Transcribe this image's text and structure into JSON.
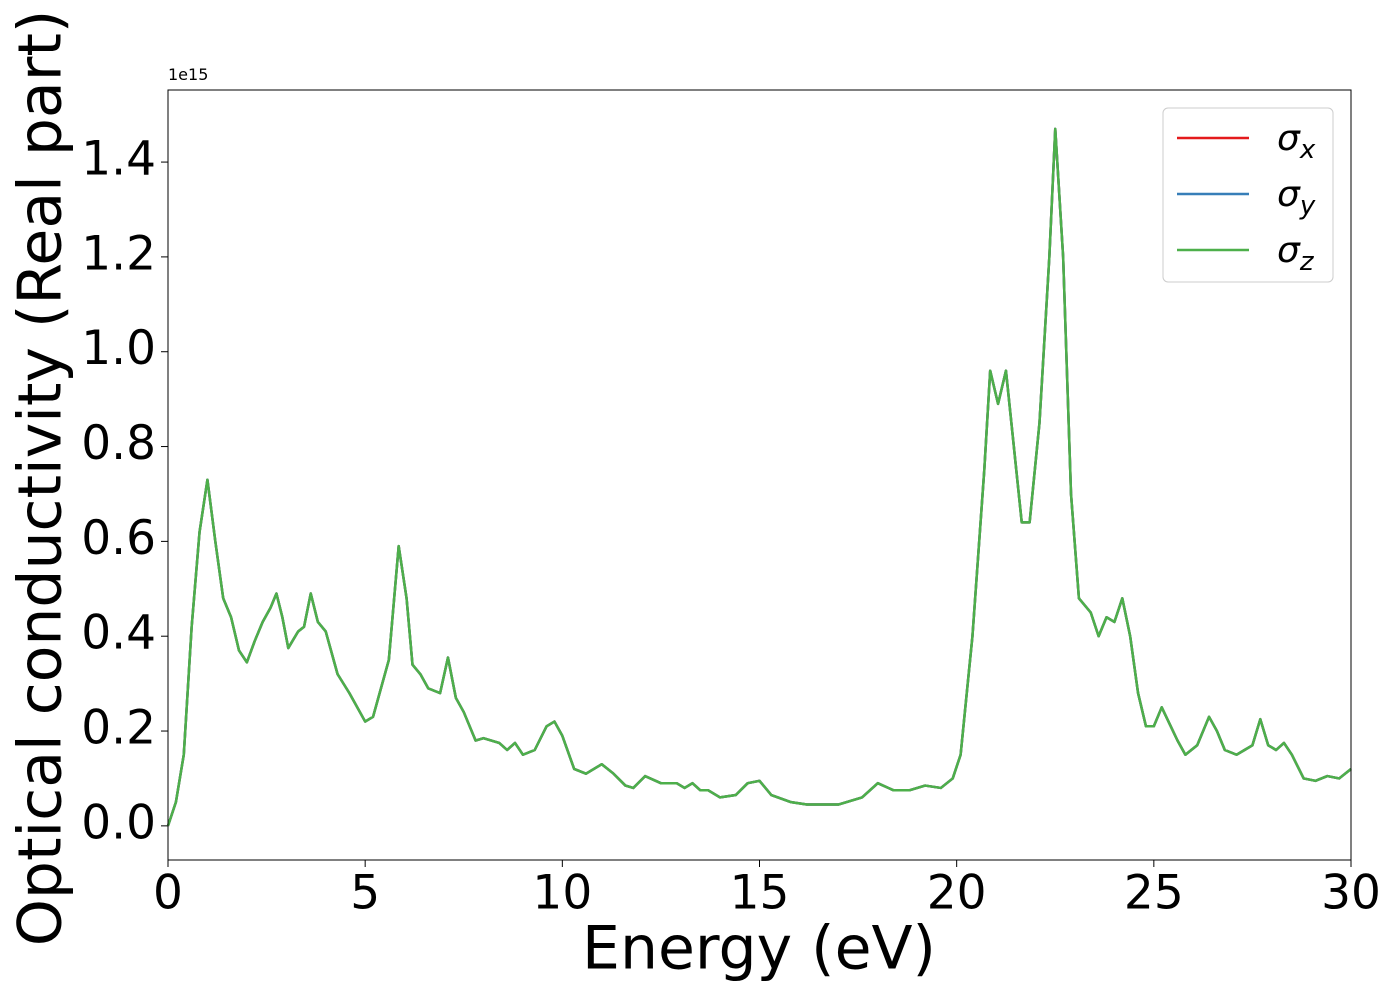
{
  "chart_data": {
    "type": "line",
    "xlabel": "Energy (eV)",
    "ylabel": "Optical conductivity (Real part)",
    "y_offset_label": "1e15",
    "x": [
      0,
      0.2,
      0.4,
      0.6,
      0.8,
      1.0,
      1.2,
      1.4,
      1.6,
      1.8,
      2.0,
      2.2,
      2.4,
      2.6,
      2.75,
      2.9,
      3.05,
      3.3,
      3.45,
      3.62,
      3.8,
      4.0,
      4.3,
      4.6,
      5.0,
      5.2,
      5.6,
      5.85,
      6.05,
      6.2,
      6.4,
      6.6,
      6.9,
      7.1,
      7.3,
      7.5,
      7.8,
      8.0,
      8.4,
      8.6,
      8.8,
      9.0,
      9.3,
      9.6,
      9.8,
      10.0,
      10.3,
      10.6,
      11.0,
      11.3,
      11.6,
      11.8,
      12.1,
      12.5,
      12.9,
      13.1,
      13.3,
      13.5,
      13.7,
      14.0,
      14.4,
      14.7,
      15.0,
      15.3,
      15.8,
      16.2,
      17.0,
      17.6,
      18.0,
      18.4,
      18.8,
      19.2,
      19.6,
      19.9,
      20.1,
      20.4,
      20.7,
      20.85,
      21.05,
      21.25,
      21.45,
      21.65,
      21.85,
      22.1,
      22.35,
      22.5,
      22.7,
      22.9,
      23.1,
      23.4,
      23.6,
      23.8,
      24.0,
      24.2,
      24.4,
      24.6,
      24.8,
      25.0,
      25.2,
      25.4,
      25.6,
      25.8,
      26.1,
      26.4,
      26.6,
      26.8,
      27.1,
      27.3,
      27.5,
      27.7,
      27.9,
      28.1,
      28.3,
      28.5,
      28.8,
      29.1,
      29.4,
      29.7,
      30.0
    ],
    "series": [
      {
        "name": "σx",
        "color": "#e41a1c",
        "values": [
          0.0,
          0.05,
          0.15,
          0.42,
          0.62,
          0.73,
          0.6,
          0.48,
          0.44,
          0.37,
          0.345,
          0.39,
          0.43,
          0.46,
          0.49,
          0.44,
          0.375,
          0.41,
          0.42,
          0.49,
          0.43,
          0.41,
          0.32,
          0.28,
          0.22,
          0.23,
          0.35,
          0.59,
          0.48,
          0.34,
          0.32,
          0.29,
          0.28,
          0.355,
          0.27,
          0.24,
          0.18,
          0.185,
          0.175,
          0.16,
          0.175,
          0.15,
          0.16,
          0.21,
          0.22,
          0.19,
          0.12,
          0.11,
          0.13,
          0.11,
          0.085,
          0.08,
          0.105,
          0.09,
          0.09,
          0.08,
          0.09,
          0.075,
          0.075,
          0.06,
          0.065,
          0.09,
          0.095,
          0.065,
          0.05,
          0.045,
          0.045,
          0.06,
          0.09,
          0.075,
          0.075,
          0.085,
          0.08,
          0.1,
          0.15,
          0.4,
          0.75,
          0.96,
          0.89,
          0.96,
          0.8,
          0.64,
          0.64,
          0.85,
          1.2,
          1.47,
          1.2,
          0.7,
          0.48,
          0.45,
          0.4,
          0.44,
          0.43,
          0.48,
          0.4,
          0.28,
          0.21,
          0.21,
          0.25,
          0.215,
          0.18,
          0.15,
          0.17,
          0.23,
          0.2,
          0.16,
          0.15,
          0.16,
          0.17,
          0.225,
          0.17,
          0.16,
          0.175,
          0.15,
          0.1,
          0.095,
          0.105,
          0.1,
          0.12
        ]
      },
      {
        "name": "σy",
        "color": "#377eb8",
        "values": [
          0.0,
          0.05,
          0.15,
          0.42,
          0.62,
          0.73,
          0.6,
          0.48,
          0.44,
          0.37,
          0.345,
          0.39,
          0.43,
          0.46,
          0.49,
          0.44,
          0.375,
          0.41,
          0.42,
          0.49,
          0.43,
          0.41,
          0.32,
          0.28,
          0.22,
          0.23,
          0.35,
          0.59,
          0.48,
          0.34,
          0.32,
          0.29,
          0.28,
          0.355,
          0.27,
          0.24,
          0.18,
          0.185,
          0.175,
          0.16,
          0.175,
          0.15,
          0.16,
          0.21,
          0.22,
          0.19,
          0.12,
          0.11,
          0.13,
          0.11,
          0.085,
          0.08,
          0.105,
          0.09,
          0.09,
          0.08,
          0.09,
          0.075,
          0.075,
          0.06,
          0.065,
          0.09,
          0.095,
          0.065,
          0.05,
          0.045,
          0.045,
          0.06,
          0.09,
          0.075,
          0.075,
          0.085,
          0.08,
          0.1,
          0.15,
          0.4,
          0.75,
          0.96,
          0.89,
          0.96,
          0.8,
          0.64,
          0.64,
          0.85,
          1.2,
          1.47,
          1.2,
          0.7,
          0.48,
          0.45,
          0.4,
          0.44,
          0.43,
          0.48,
          0.4,
          0.28,
          0.21,
          0.21,
          0.25,
          0.215,
          0.18,
          0.15,
          0.17,
          0.23,
          0.2,
          0.16,
          0.15,
          0.16,
          0.17,
          0.225,
          0.17,
          0.16,
          0.175,
          0.15,
          0.1,
          0.095,
          0.105,
          0.1,
          0.12
        ]
      },
      {
        "name": "σz",
        "color": "#4daf4a",
        "values": [
          0.0,
          0.05,
          0.15,
          0.42,
          0.62,
          0.73,
          0.6,
          0.48,
          0.44,
          0.37,
          0.345,
          0.39,
          0.43,
          0.46,
          0.49,
          0.44,
          0.375,
          0.41,
          0.42,
          0.49,
          0.43,
          0.41,
          0.32,
          0.28,
          0.22,
          0.23,
          0.35,
          0.59,
          0.48,
          0.34,
          0.32,
          0.29,
          0.28,
          0.355,
          0.27,
          0.24,
          0.18,
          0.185,
          0.175,
          0.16,
          0.175,
          0.15,
          0.16,
          0.21,
          0.22,
          0.19,
          0.12,
          0.11,
          0.13,
          0.11,
          0.085,
          0.08,
          0.105,
          0.09,
          0.09,
          0.08,
          0.09,
          0.075,
          0.075,
          0.06,
          0.065,
          0.09,
          0.095,
          0.065,
          0.05,
          0.045,
          0.045,
          0.06,
          0.09,
          0.075,
          0.075,
          0.085,
          0.08,
          0.1,
          0.15,
          0.4,
          0.75,
          0.96,
          0.89,
          0.96,
          0.8,
          0.64,
          0.64,
          0.85,
          1.2,
          1.47,
          1.2,
          0.7,
          0.48,
          0.45,
          0.4,
          0.44,
          0.43,
          0.48,
          0.4,
          0.28,
          0.21,
          0.21,
          0.25,
          0.215,
          0.18,
          0.15,
          0.17,
          0.23,
          0.2,
          0.16,
          0.15,
          0.16,
          0.17,
          0.225,
          0.17,
          0.16,
          0.175,
          0.15,
          0.1,
          0.095,
          0.105,
          0.1,
          0.12
        ]
      }
    ],
    "xlim": [
      0,
      30
    ],
    "xticks": [
      0,
      5,
      10,
      15,
      20,
      25,
      30
    ],
    "ylim": [
      -0.072,
      1.552
    ],
    "yticks": [
      {
        "value": 0,
        "label": "0.0"
      },
      0.2,
      0.4,
      0.6,
      0.8,
      {
        "value": 1,
        "label": "1.0"
      },
      1.2,
      1.4
    ],
    "grid": false,
    "legend": "upper right"
  }
}
